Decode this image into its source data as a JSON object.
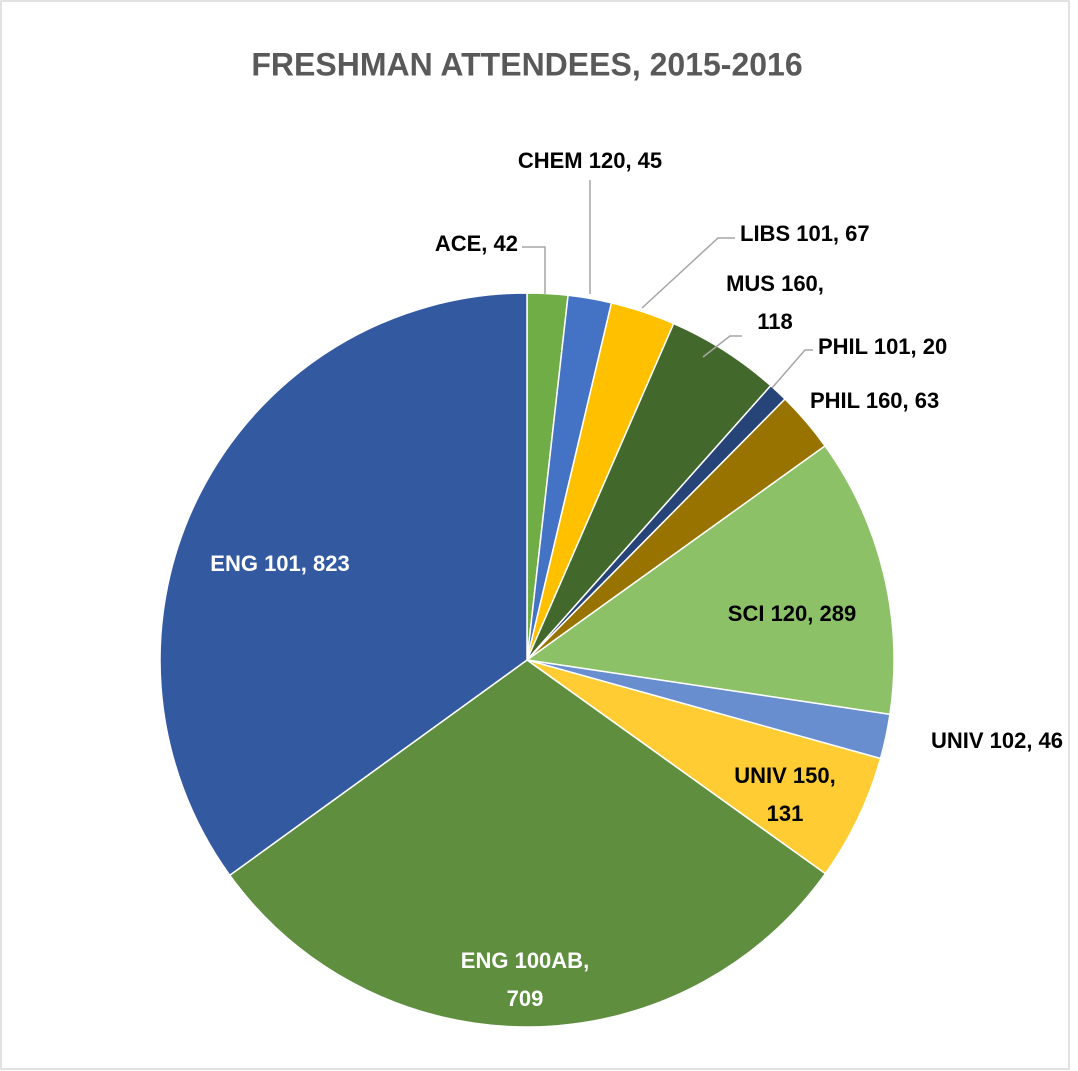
{
  "chart_data": {
    "type": "pie",
    "title": "FRESHMAN ATTENDEES, 2015-2016",
    "values": [
      42,
      45,
      67,
      118,
      20,
      63,
      289,
      46,
      131,
      709,
      823
    ],
    "value_labels": [
      "ACE, 42",
      "CHEM 120, 45",
      "LIBS 101, 67",
      "MUS 160,\n118",
      "PHIL 101, 20",
      "PHIL 160, 63",
      "SCI 120, 289",
      "UNIV 102, 46",
      "UNIV 150,\n131",
      "ENG 100AB,\n709",
      "ENG 101, 823"
    ],
    "colors": [
      "#70ad47",
      "#4472c4",
      "#ffc000",
      "#43682b",
      "#264478",
      "#997300",
      "#8cc168",
      "#698ed0",
      "#ffcd33",
      "#5e8e3e",
      "#335aa1"
    ]
  }
}
